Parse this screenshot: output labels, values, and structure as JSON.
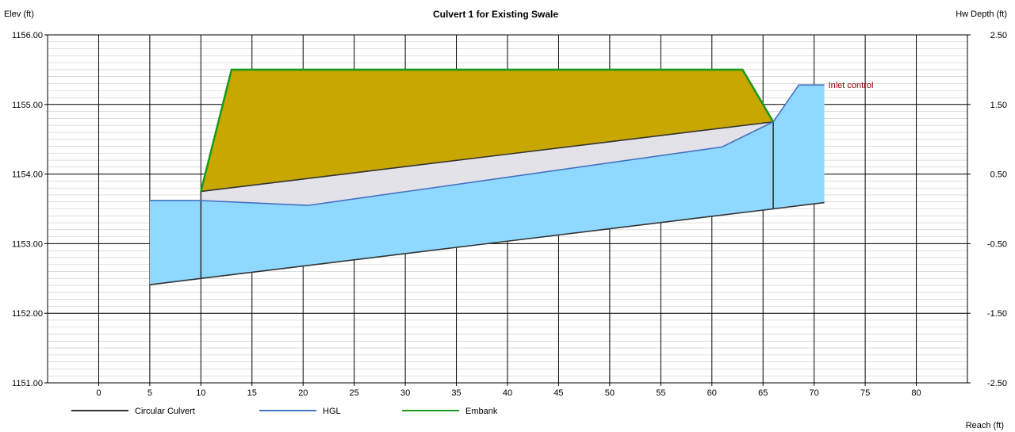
{
  "chart_data": {
    "type": "area",
    "title": "Culvert 1 for Existing Swale",
    "xlabel": "Reach (ft)",
    "ylabel_left": "Elev (ft)",
    "ylabel_right": "Hw Depth (ft)",
    "xlim": [
      -5,
      85
    ],
    "ylim": [
      1151.0,
      1156.0
    ],
    "ylim_right": [
      -2.5,
      2.5
    ],
    "x_ticks": [
      "0",
      "5",
      "10",
      "15",
      "20",
      "25",
      "30",
      "35",
      "40",
      "45",
      "50",
      "55",
      "60",
      "65",
      "70",
      "75",
      "80"
    ],
    "y_ticks_left": [
      "1156.00",
      "1155.00",
      "1154.00",
      "1153.00",
      "1152.00",
      "1151.00"
    ],
    "y_ticks_right": [
      "2.50",
      "1.50",
      "0.50",
      "-0.50",
      "-1.50",
      "-2.50"
    ],
    "grid": true,
    "legend_position": "bottom-left",
    "series": [
      {
        "name": "Circular Culvert",
        "color": "#333333",
        "invert": {
          "x": [
            5,
            10,
            66,
            71
          ],
          "y": [
            1152.41,
            1152.5,
            1153.5,
            1153.59
          ]
        },
        "crown": {
          "x": [
            10,
            66
          ],
          "y": [
            1153.75,
            1154.75
          ]
        }
      },
      {
        "name": "HGL",
        "color": "#4472C4",
        "x": [
          5,
          10,
          20.5,
          61,
          66,
          68.5,
          71
        ],
        "y": [
          1153.62,
          1153.62,
          1153.55,
          1154.39,
          1154.75,
          1155.28,
          1155.28
        ]
      },
      {
        "name": "Embank",
        "color": "#1E9A1E",
        "x": [
          10,
          13,
          63,
          66
        ],
        "y": [
          1153.75,
          1155.5,
          1155.5,
          1154.75
        ]
      }
    ],
    "water_color": "#8FD8FF",
    "embankment_fill": "#C8A800",
    "culvert_fill": "#E2E2E8",
    "annotations": [
      {
        "text": "Inlet control",
        "x": 71,
        "y": 1155.28,
        "color": "#8B0000"
      }
    ]
  }
}
